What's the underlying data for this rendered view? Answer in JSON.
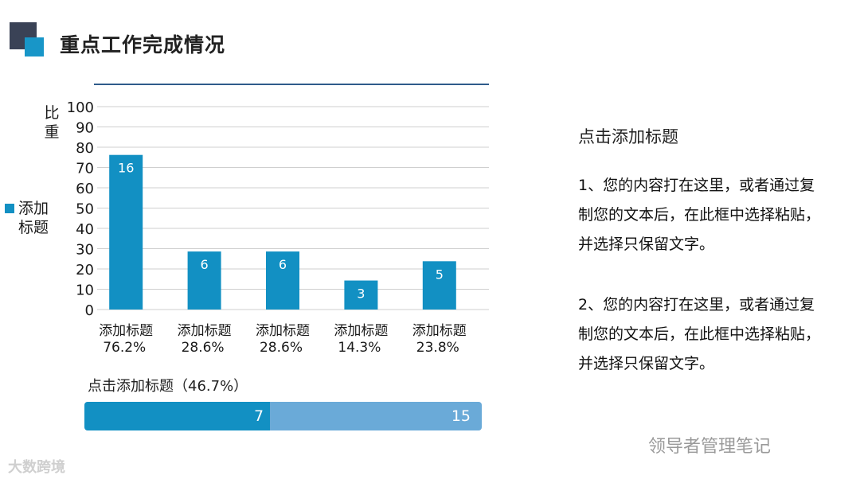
{
  "page": {
    "title": "重点工作完成情况"
  },
  "chart_data": {
    "type": "bar",
    "ylabel": "比重",
    "ylim": [
      0,
      100
    ],
    "yticks": [
      0,
      10,
      20,
      30,
      40,
      50,
      60,
      70,
      80,
      90,
      100
    ],
    "grid": true,
    "legend": {
      "position": "left",
      "label": "添加标题"
    },
    "color": "#1290c3",
    "categories": [
      "添加标题",
      "添加标题",
      "添加标题",
      "添加标题",
      "添加标题"
    ],
    "percent_labels": [
      "76.2%",
      "28.6%",
      "28.6%",
      "14.3%",
      "23.8%"
    ],
    "values": [
      76.2,
      28.6,
      28.6,
      14.3,
      23.8
    ],
    "data_labels": [
      "16",
      "6",
      "6",
      "3",
      "5"
    ]
  },
  "progress": {
    "label": "点击添加标题（46.7%）",
    "completed": "7",
    "total": "15",
    "fraction": 0.467,
    "fill_color": "#1290c3",
    "track_color": "#6aaad8"
  },
  "side": {
    "heading": "点击添加标题",
    "paragraphs": [
      "1、您的内容打在这里，或者通过复制您的文本后，在此框中选择粘贴，并选择只保留文字。",
      "2、您的内容打在这里，或者通过复制您的文本后，在此框中选择粘贴，并选择只保留文字。"
    ]
  },
  "watermarks": {
    "left": "大数跨境",
    "right": "领导者管理笔记"
  }
}
